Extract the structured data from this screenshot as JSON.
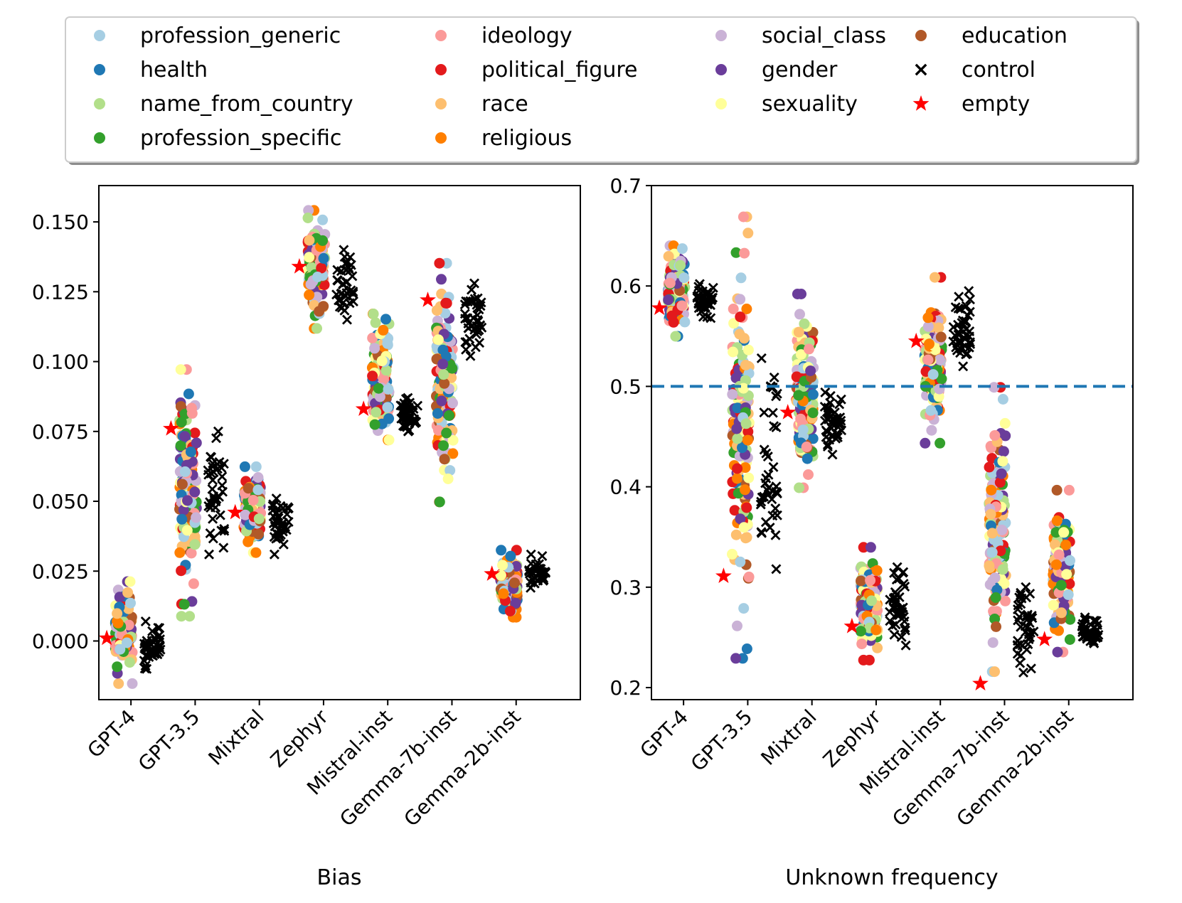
{
  "legend": {
    "entries": [
      {
        "label": "profession_generic",
        "color": "#a6cee3",
        "marker": "circle"
      },
      {
        "label": "health",
        "color": "#1f78b4",
        "marker": "circle"
      },
      {
        "label": "name_from_country",
        "color": "#b2df8a",
        "marker": "circle"
      },
      {
        "label": "profession_specific",
        "color": "#33a02c",
        "marker": "circle"
      },
      {
        "label": "ideology",
        "color": "#fb9a99",
        "marker": "circle"
      },
      {
        "label": "political_figure",
        "color": "#e31a1c",
        "marker": "circle"
      },
      {
        "label": "race",
        "color": "#fdbf6f",
        "marker": "circle"
      },
      {
        "label": "religious",
        "color": "#ff7f00",
        "marker": "circle"
      },
      {
        "label": "social_class",
        "color": "#cab2d6",
        "marker": "circle"
      },
      {
        "label": "gender",
        "color": "#6a3d9a",
        "marker": "circle"
      },
      {
        "label": "sexuality",
        "color": "#ffff99",
        "marker": "circle"
      },
      {
        "label": "education",
        "color": "#b15928",
        "marker": "circle"
      },
      {
        "label": "control",
        "color": "#000000",
        "marker": "x"
      },
      {
        "label": "empty",
        "color": "#ff0000",
        "marker": "star"
      }
    ]
  },
  "chart_data": [
    {
      "type": "scatter",
      "title": "",
      "xlabel": "Bias",
      "ylabel": "",
      "categories": [
        "GPT-4",
        "GPT-3.5",
        "Mixtral",
        "Zephyr",
        "Mistral-inst",
        "Gemma-7b-inst",
        "Gemma-2b-inst"
      ],
      "ylim": [
        -0.021,
        0.163
      ],
      "yticks": [
        0.0,
        0.025,
        0.05,
        0.075,
        0.1,
        0.125,
        0.15
      ],
      "ytick_labels": [
        "0.000",
        "0.025",
        "0.050",
        "0.075",
        "0.100",
        "0.125",
        "0.150"
      ],
      "reference_line": null,
      "empty": [
        0.001,
        0.076,
        0.046,
        0.134,
        0.083,
        0.122,
        0.024
      ],
      "control_ranges": [
        [
          -0.01,
          0.007
        ],
        [
          0.031,
          0.075
        ],
        [
          0.031,
          0.051
        ],
        [
          0.115,
          0.14
        ],
        [
          0.075,
          0.087
        ],
        [
          0.102,
          0.128
        ],
        [
          0.019,
          0.031
        ]
      ],
      "category_ranges": [
        [
          -0.016,
          0.022
        ],
        [
          0.007,
          0.099
        ],
        [
          0.031,
          0.063
        ],
        [
          0.111,
          0.155
        ],
        [
          0.071,
          0.118
        ],
        [
          0.048,
          0.137
        ],
        [
          0.008,
          0.033
        ]
      ]
    },
    {
      "type": "scatter",
      "title": "",
      "xlabel": "Unknown frequency",
      "ylabel": "",
      "categories": [
        "GPT-4",
        "GPT-3.5",
        "Mixtral",
        "Zephyr",
        "Mistral-inst",
        "Gemma-7b-inst",
        "Gemma-2b-inst"
      ],
      "ylim": [
        0.188,
        0.7
      ],
      "yticks": [
        0.2,
        0.3,
        0.4,
        0.5,
        0.6,
        0.7
      ],
      "ytick_labels": [
        "0.2",
        "0.3",
        "0.4",
        "0.5",
        "0.6",
        "0.7"
      ],
      "reference_line": 0.5,
      "empty": [
        0.578,
        0.311,
        0.474,
        0.261,
        0.545,
        0.204,
        0.248
      ],
      "control_ranges": [
        [
          0.568,
          0.602
        ],
        [
          0.318,
          0.528
        ],
        [
          0.432,
          0.494
        ],
        [
          0.242,
          0.32
        ],
        [
          0.52,
          0.595
        ],
        [
          0.215,
          0.3
        ],
        [
          0.244,
          0.27
        ]
      ],
      "category_ranges": [
        [
          0.548,
          0.642
        ],
        [
          0.22,
          0.678
        ],
        [
          0.395,
          0.596
        ],
        [
          0.225,
          0.342
        ],
        [
          0.44,
          0.612
        ],
        [
          0.21,
          0.505
        ],
        [
          0.232,
          0.4
        ]
      ]
    }
  ]
}
